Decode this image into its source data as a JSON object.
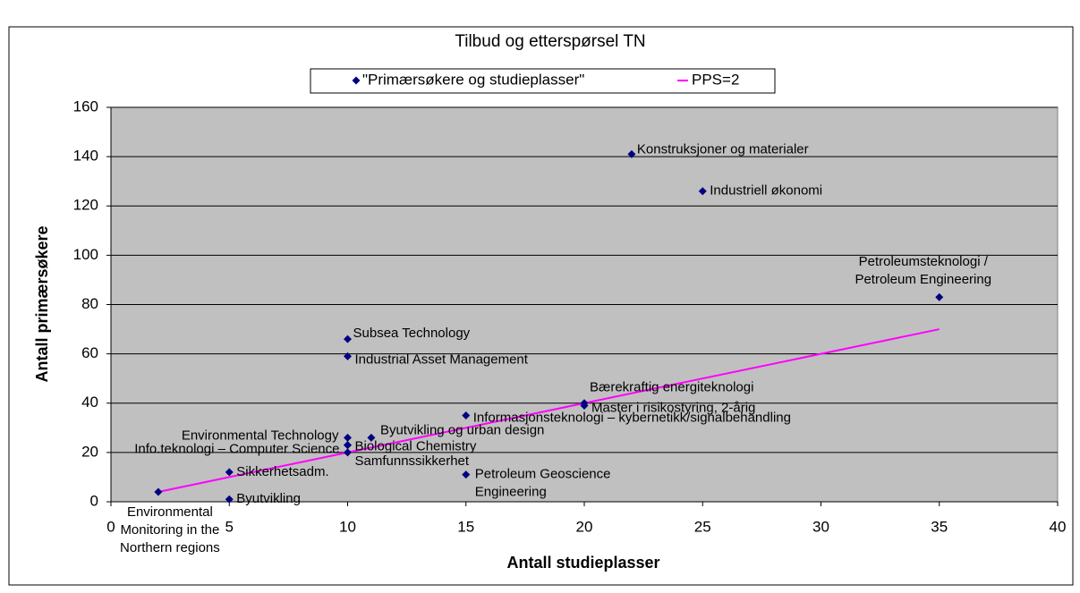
{
  "chart_data": {
    "type": "scatter",
    "title": "Tilbud og etterspørsel TN",
    "xlabel": "Antall studieplasser",
    "ylabel": "Antall primærsøkere",
    "xlim": [
      0,
      40
    ],
    "xticks": [
      0,
      5,
      10,
      15,
      20,
      25,
      30,
      35,
      40
    ],
    "ylim": [
      0,
      160
    ],
    "yticks": [
      0,
      20,
      40,
      60,
      80,
      100,
      120,
      140,
      160
    ],
    "grid": true,
    "legend": "top",
    "series": [
      {
        "name": "\"Primærsøkere og studieplasser\"",
        "color": "#000080",
        "kind": "scatter",
        "x": [
          2,
          5,
          5,
          10,
          10,
          10,
          10,
          11,
          10,
          10,
          15,
          15,
          20,
          20,
          22,
          25,
          35
        ],
        "values": [
          4,
          1,
          12,
          26,
          23,
          23,
          20,
          26,
          66,
          59,
          35,
          11,
          40,
          39,
          141,
          126,
          83
        ],
        "labels": [
          [
            "Environmental",
            "Monitoring in the",
            "Northern regions"
          ],
          "Byutvikling",
          "Sikkerhetsadm.",
          "Environmental Technology",
          "Info.teknologi – Computer Science",
          "Biological Chemistry",
          "Samfunnssikkerhet",
          "Byutvikling og urban design",
          "Subsea Technology",
          "Industrial Asset Management",
          "Informasjonsteknologi – kybernetikk/signalbehandling",
          [
            "Petroleum Geoscience",
            "Engineering"
          ],
          "Bærekraftig energiteknologi",
          "Master i risikostyring, 2-årig",
          "Konstruksjoner og materialer",
          "Industriell økonomi",
          [
            "Petroleumsteknologi /",
            "Petroleum Engineering"
          ]
        ]
      },
      {
        "name": "PPS=2",
        "color": "#ff00ff",
        "kind": "line",
        "x": [
          2,
          35
        ],
        "values": [
          4,
          70
        ]
      }
    ]
  }
}
